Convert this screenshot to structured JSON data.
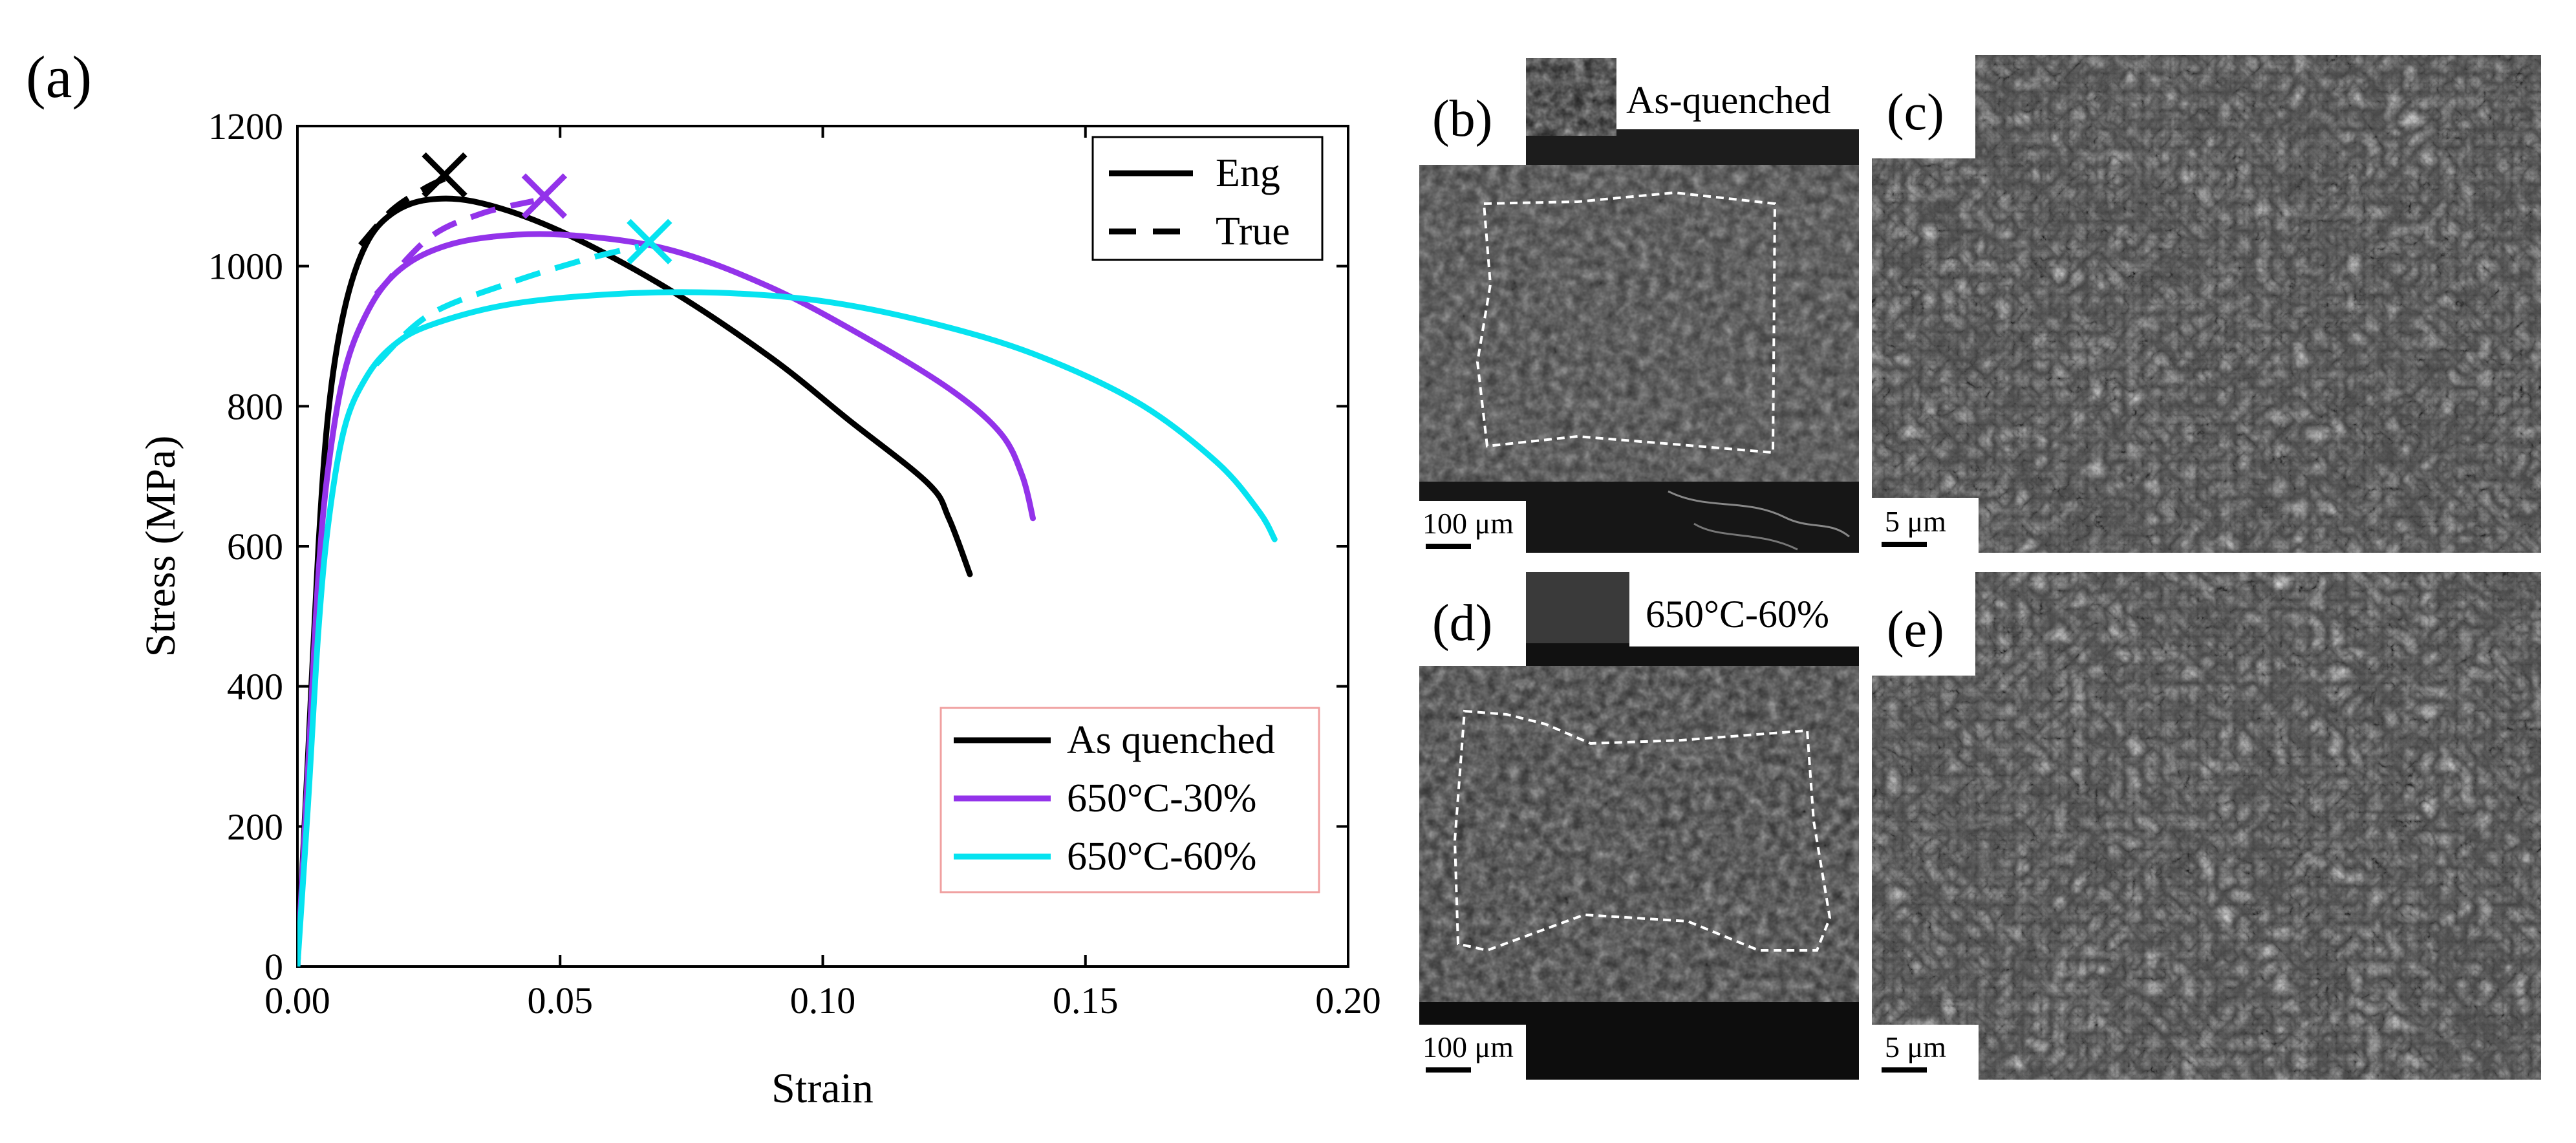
{
  "chart_data": {
    "type": "line",
    "panel_label": "(a)",
    "xlabel": "Strain",
    "ylabel": "Stress (MPa)",
    "xlim": [
      0,
      0.2
    ],
    "ylim": [
      0,
      1200
    ],
    "x_ticks": [
      0,
      0.05,
      0.1,
      0.15,
      0.2
    ],
    "x_tick_labels": [
      "0.00",
      "0.05",
      "0.10",
      "0.15",
      "0.20"
    ],
    "y_ticks": [
      0,
      200,
      400,
      600,
      800,
      1000,
      1200
    ],
    "y_tick_labels": [
      "0",
      "200",
      "400",
      "600",
      "800",
      "1000",
      "1200"
    ],
    "line_style_legend": [
      {
        "label": "Eng",
        "style": "solid"
      },
      {
        "label": "True",
        "style": "dashed"
      }
    ],
    "series": [
      {
        "name": "As quenched",
        "color": "#000000",
        "eng": [
          [
            0,
            0
          ],
          [
            0.002,
            300
          ],
          [
            0.004,
            600
          ],
          [
            0.006,
            800
          ],
          [
            0.009,
            940
          ],
          [
            0.013,
            1030
          ],
          [
            0.018,
            1075
          ],
          [
            0.025,
            1095
          ],
          [
            0.035,
            1090
          ],
          [
            0.05,
            1050
          ],
          [
            0.07,
            970
          ],
          [
            0.09,
            870
          ],
          [
            0.105,
            780
          ],
          [
            0.12,
            690
          ],
          [
            0.124,
            640
          ],
          [
            0.128,
            560
          ]
        ],
        "true": [
          [
            0.012,
            1030
          ],
          [
            0.018,
            1080
          ],
          [
            0.024,
            1110
          ],
          [
            0.028,
            1125
          ]
        ],
        "fracture": [
          0.028,
          1130
        ]
      },
      {
        "name": "650°C-30%",
        "color": "#9333ea",
        "eng": [
          [
            0,
            0
          ],
          [
            0.002,
            280
          ],
          [
            0.004,
            560
          ],
          [
            0.006,
            720
          ],
          [
            0.009,
            850
          ],
          [
            0.013,
            930
          ],
          [
            0.018,
            985
          ],
          [
            0.025,
            1020
          ],
          [
            0.035,
            1040
          ],
          [
            0.05,
            1045
          ],
          [
            0.07,
            1025
          ],
          [
            0.09,
            970
          ],
          [
            0.11,
            890
          ],
          [
            0.125,
            820
          ],
          [
            0.134,
            760
          ],
          [
            0.138,
            700
          ],
          [
            0.14,
            640
          ]
        ],
        "true": [
          [
            0.015,
            960
          ],
          [
            0.025,
            1040
          ],
          [
            0.035,
            1075
          ],
          [
            0.045,
            1093
          ]
        ],
        "fracture": [
          0.047,
          1100
        ]
      },
      {
        "name": "650°C-60%",
        "color": "#06e3f0",
        "eng": [
          [
            0,
            0
          ],
          [
            0.002,
            230
          ],
          [
            0.004,
            480
          ],
          [
            0.006,
            640
          ],
          [
            0.009,
            770
          ],
          [
            0.013,
            840
          ],
          [
            0.018,
            885
          ],
          [
            0.025,
            915
          ],
          [
            0.04,
            945
          ],
          [
            0.06,
            960
          ],
          [
            0.08,
            962
          ],
          [
            0.1,
            950
          ],
          [
            0.12,
            920
          ],
          [
            0.14,
            875
          ],
          [
            0.16,
            805
          ],
          [
            0.175,
            720
          ],
          [
            0.183,
            650
          ],
          [
            0.186,
            610
          ]
        ],
        "true": [
          [
            0.015,
            860
          ],
          [
            0.025,
            930
          ],
          [
            0.04,
            975
          ],
          [
            0.055,
            1010
          ],
          [
            0.065,
            1028
          ]
        ],
        "fracture": [
          0.067,
          1035
        ]
      }
    ]
  },
  "images": [
    {
      "label": "(b)",
      "caption": "As-quenched",
      "scale": "100 μm"
    },
    {
      "label": "(c)",
      "caption": "",
      "scale": "5 μm"
    },
    {
      "label": "(d)",
      "caption": "650°C-60%",
      "scale": "100 μm"
    },
    {
      "label": "(e)",
      "caption": "",
      "scale": "5 μm"
    }
  ]
}
